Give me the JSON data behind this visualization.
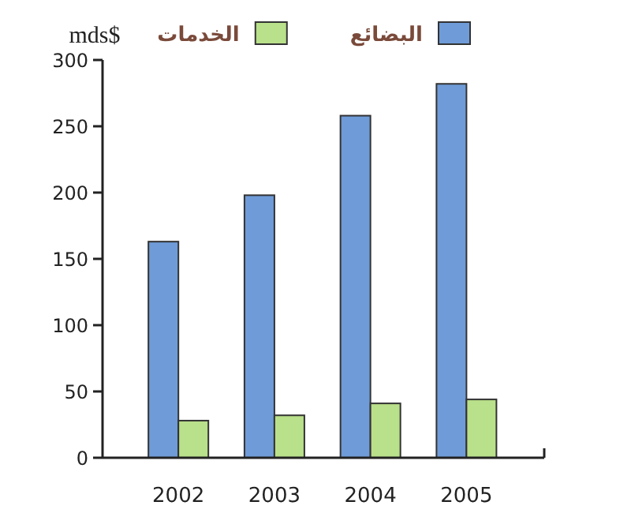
{
  "chart_data": {
    "type": "bar",
    "ylabel": "mds$",
    "categories": [
      "2002",
      "2003",
      "2004",
      "2005"
    ],
    "series": [
      {
        "name": "البضائع",
        "color": "#6f9bd8",
        "values": [
          163,
          198,
          258,
          282
        ]
      },
      {
        "name": "الخدمات",
        "color": "#b9e08a",
        "values": [
          28,
          32,
          41,
          44
        ]
      }
    ],
    "ylim": [
      0,
      300
    ],
    "yticks": [
      0,
      50,
      100,
      150,
      200,
      250,
      300
    ],
    "legend": "top",
    "grid": false
  }
}
